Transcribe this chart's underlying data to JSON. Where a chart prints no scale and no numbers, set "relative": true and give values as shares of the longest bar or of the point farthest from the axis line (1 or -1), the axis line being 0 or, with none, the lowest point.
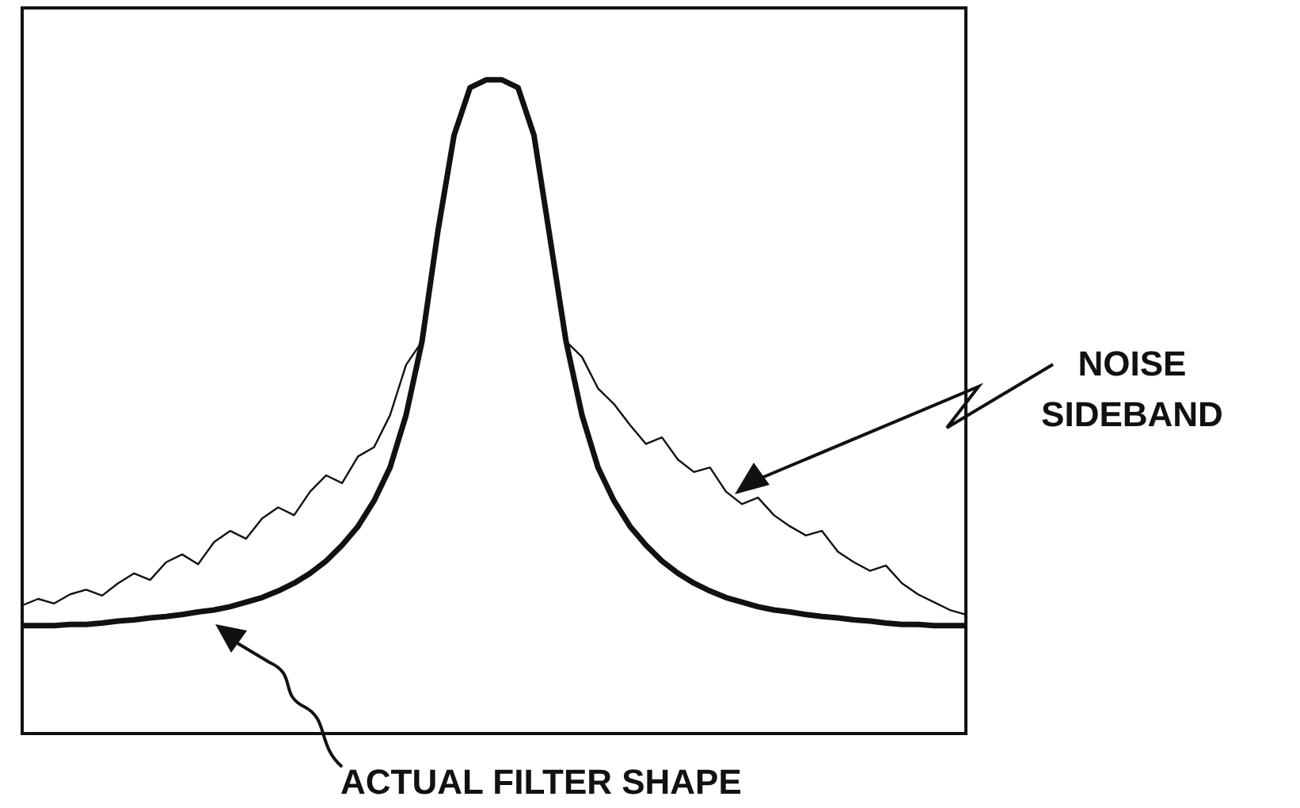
{
  "chart_data": {
    "type": "line",
    "relative": true,
    "legend": false,
    "annotations": [
      "NOISE SIDEBAND",
      "ACTUAL FILTER SHAPE"
    ],
    "marker": "none",
    "categories": [
      null,
      null,
      null,
      null,
      null,
      null,
      null,
      null,
      null,
      null,
      null,
      null,
      null,
      null,
      null,
      null,
      null,
      null,
      null,
      null,
      null,
      null,
      null,
      null,
      null,
      null,
      null,
      null,
      null,
      null,
      null,
      null,
      null,
      null,
      null,
      null,
      null,
      null,
      null,
      null,
      null,
      null,
      null,
      null,
      null,
      null,
      null,
      null,
      null,
      null,
      null,
      null,
      null,
      null,
      null,
      null,
      null,
      null,
      null,
      null
    ],
    "series": [
      {
        "color": "#111111",
        "values": [
          0.165,
          0.165,
          0.165,
          0.167,
          0.167,
          0.169,
          0.172,
          0.174,
          0.177,
          0.179,
          0.182,
          0.186,
          0.189,
          0.194,
          0.201,
          0.208,
          0.218,
          0.23,
          0.245,
          0.264,
          0.288,
          0.317,
          0.356,
          0.407,
          0.487,
          0.6,
          0.77,
          0.915,
          0.988,
          1,
          1,
          0.988,
          0.915,
          0.758,
          0.6,
          0.487,
          0.407,
          0.356,
          0.317,
          0.288,
          0.264,
          0.245,
          0.23,
          0.218,
          0.208,
          0.201,
          0.194,
          0.189,
          0.186,
          0.182,
          0.179,
          0.177,
          0.174,
          0.172,
          0.169,
          0.167,
          0.167,
          0.165,
          0.165,
          0.165
        ]
      },
      {
        "color": "#111111",
        "values": [
          0.196,
          0.206,
          0.199,
          0.213,
          0.22,
          0.211,
          0.23,
          0.245,
          0.235,
          0.262,
          0.274,
          0.259,
          0.293,
          0.31,
          0.298,
          0.329,
          0.346,
          0.334,
          0.37,
          0.395,
          0.383,
          0.424,
          0.438,
          0.487,
          0.564,
          0.6,
          null,
          null,
          null,
          null,
          null,
          null,
          null,
          null,
          0.6,
          0.576,
          0.528,
          0.504,
          0.472,
          0.443,
          0.453,
          0.419,
          0.4,
          0.407,
          0.37,
          0.351,
          0.361,
          0.334,
          0.317,
          0.303,
          0.31,
          0.278,
          0.262,
          0.249,
          0.257,
          0.23,
          0.213,
          0.201,
          0.189,
          0.182
        ]
      }
    ]
  }
}
